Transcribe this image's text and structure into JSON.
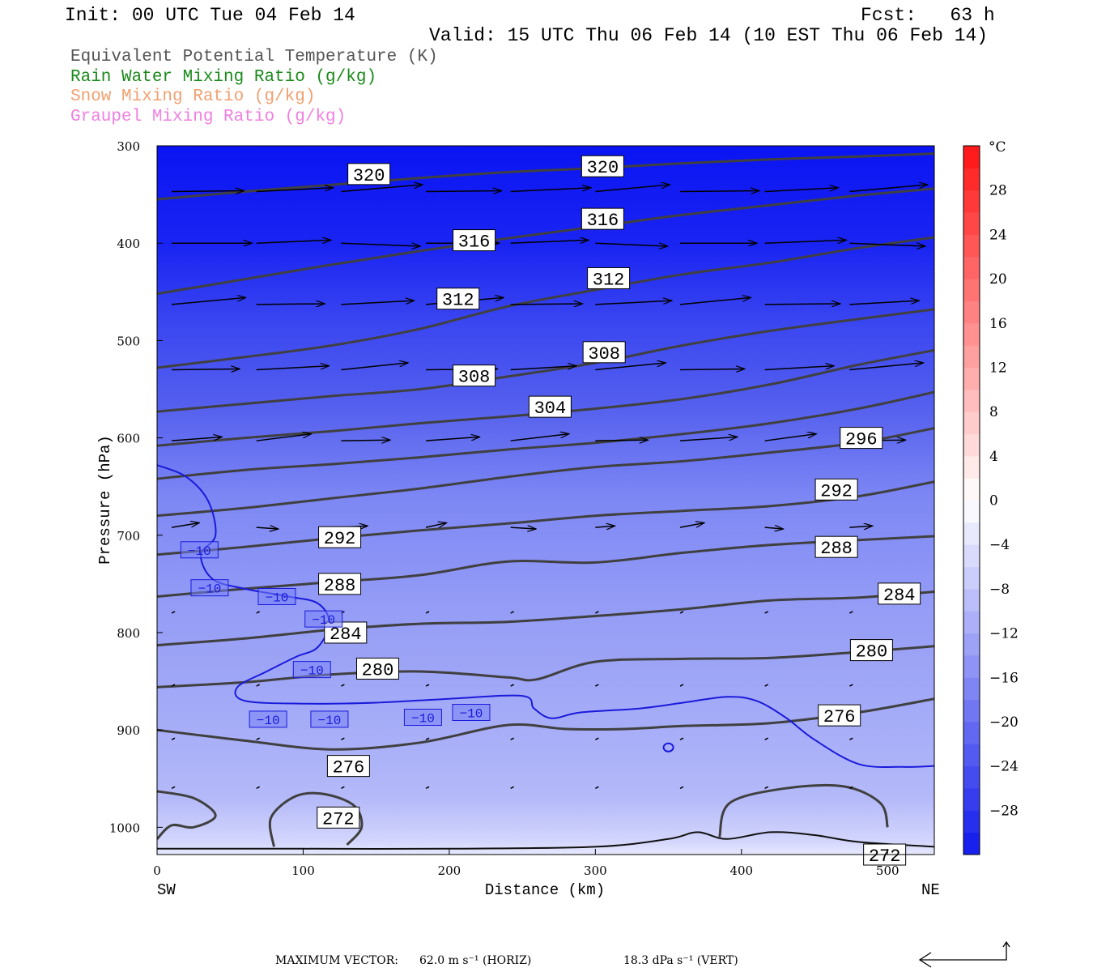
{
  "header": {
    "init": "Init: 00 UTC Tue 04 Feb 14",
    "fcst": "Fcst:   63 h",
    "valid": "Valid: 15 UTC Thu 06 Feb 14 (10 EST Thu 06 Feb 14)"
  },
  "legend": [
    {
      "label": "Equivalent Potential Temperature (K)",
      "color": "#555555"
    },
    {
      "label": "Rain Water Mixing Ratio (g/kg)",
      "color": "#1a8a1a"
    },
    {
      "label": "Snow Mixing Ratio (g/kg)",
      "color": "#f0a070"
    },
    {
      "label": "Graupel Mixing Ratio (g/kg)",
      "color": "#f080e0"
    }
  ],
  "footer": {
    "max_vector_label": "MAXIMUM VECTOR:",
    "horiz": "62.0 m s⁻¹ (HORIZ)",
    "vert": "18.3 dPa s⁻¹ (VERT)"
  },
  "chart_data": {
    "type": "cross-section",
    "xlabel": "Distance (km)",
    "ylabel": "Pressure (hPa)",
    "x_left_label": "SW",
    "x_right_label": "NE",
    "xlim": [
      0,
      532
    ],
    "ylim": [
      1028,
      300
    ],
    "xticks": [
      0,
      100,
      200,
      300,
      400,
      500
    ],
    "yticks": [
      300,
      400,
      500,
      600,
      700,
      800,
      900,
      1000
    ],
    "colorbar": {
      "unit": "°C",
      "ticks": [
        28,
        24,
        20,
        16,
        12,
        8,
        4,
        0,
        -4,
        -8,
        -12,
        -16,
        -20,
        -24,
        -28
      ],
      "range": [
        -32,
        32
      ]
    },
    "theta_e_contours": [
      {
        "level": 320,
        "points": [
          [
            0,
            355
          ],
          [
            60,
            347
          ],
          [
            120,
            340
          ],
          [
            180,
            333
          ],
          [
            240,
            327
          ],
          [
            300,
            323
          ],
          [
            360,
            318
          ],
          [
            420,
            314
          ],
          [
            480,
            311
          ],
          [
            532,
            308
          ]
        ]
      },
      {
        "level": 316,
        "points": [
          [
            0,
            452
          ],
          [
            60,
            437
          ],
          [
            120,
            422
          ],
          [
            180,
            408
          ],
          [
            240,
            395
          ],
          [
            300,
            383
          ],
          [
            360,
            371
          ],
          [
            420,
            361
          ],
          [
            480,
            351
          ],
          [
            532,
            344
          ]
        ]
      },
      {
        "level": 312,
        "points": [
          [
            0,
            528
          ],
          [
            60,
            517
          ],
          [
            120,
            505
          ],
          [
            180,
            488
          ],
          [
            240,
            465
          ],
          [
            300,
            448
          ],
          [
            360,
            432
          ],
          [
            420,
            420
          ],
          [
            480,
            405
          ],
          [
            532,
            394
          ]
        ]
      },
      {
        "level": 308,
        "points": [
          [
            0,
            573
          ],
          [
            60,
            565
          ],
          [
            120,
            557
          ],
          [
            180,
            550
          ],
          [
            240,
            537
          ],
          [
            300,
            523
          ],
          [
            360,
            505
          ],
          [
            420,
            490
          ],
          [
            480,
            478
          ],
          [
            532,
            468
          ]
        ]
      },
      {
        "level": 304,
        "points": [
          [
            0,
            608
          ],
          [
            60,
            600
          ],
          [
            120,
            593
          ],
          [
            180,
            585
          ],
          [
            240,
            578
          ],
          [
            300,
            570
          ],
          [
            360,
            560
          ],
          [
            420,
            545
          ],
          [
            480,
            525
          ],
          [
            532,
            510
          ]
        ]
      },
      {
        "level": 300,
        "points": [
          [
            0,
            642
          ],
          [
            60,
            633
          ],
          [
            120,
            627
          ],
          [
            180,
            620
          ],
          [
            240,
            612
          ],
          [
            300,
            605
          ],
          [
            360,
            596
          ],
          [
            420,
            585
          ],
          [
            480,
            570
          ],
          [
            532,
            553
          ]
        ]
      },
      {
        "level": 296,
        "points": [
          [
            0,
            680
          ],
          [
            60,
            672
          ],
          [
            120,
            662
          ],
          [
            180,
            652
          ],
          [
            240,
            640
          ],
          [
            300,
            630
          ],
          [
            360,
            624
          ],
          [
            420,
            615
          ],
          [
            480,
            605
          ],
          [
            532,
            590
          ]
        ]
      },
      {
        "level": 292,
        "points": [
          [
            0,
            720
          ],
          [
            60,
            712
          ],
          [
            120,
            703
          ],
          [
            180,
            695
          ],
          [
            240,
            688
          ],
          [
            300,
            680
          ],
          [
            360,
            675
          ],
          [
            420,
            670
          ],
          [
            480,
            660
          ],
          [
            532,
            645
          ]
        ]
      },
      {
        "level": 288,
        "points": [
          [
            0,
            763
          ],
          [
            60,
            755
          ],
          [
            120,
            748
          ],
          [
            180,
            741
          ],
          [
            240,
            727
          ],
          [
            300,
            728
          ],
          [
            360,
            718
          ],
          [
            420,
            710
          ],
          [
            480,
            705
          ],
          [
            532,
            701
          ]
        ]
      },
      {
        "level": 284,
        "points": [
          [
            0,
            813
          ],
          [
            60,
            806
          ],
          [
            120,
            797
          ],
          [
            180,
            791
          ],
          [
            240,
            789
          ],
          [
            300,
            783
          ],
          [
            360,
            776
          ],
          [
            420,
            767
          ],
          [
            480,
            764
          ],
          [
            532,
            758
          ]
        ]
      },
      {
        "level": 280,
        "points": [
          [
            0,
            856
          ],
          [
            60,
            851
          ],
          [
            120,
            843
          ],
          [
            180,
            840
          ],
          [
            240,
            846
          ],
          [
            260,
            848
          ],
          [
            300,
            830
          ],
          [
            360,
            827
          ],
          [
            420,
            826
          ],
          [
            480,
            820
          ],
          [
            532,
            814
          ]
        ]
      },
      {
        "level": 276,
        "points": [
          [
            0,
            900
          ],
          [
            60,
            911
          ],
          [
            120,
            920
          ],
          [
            180,
            913
          ],
          [
            240,
            895
          ],
          [
            280,
            899
          ],
          [
            320,
            899
          ],
          [
            360,
            896
          ],
          [
            420,
            893
          ],
          [
            480,
            882
          ],
          [
            532,
            868
          ]
        ]
      }
    ],
    "temp_contours": [
      {
        "level": -10,
        "label_count": 9
      }
    ],
    "theta_e_labels": [
      {
        "value": "320",
        "x": 145,
        "p": 329
      },
      {
        "value": "320",
        "x": 305,
        "p": 321
      },
      {
        "value": "316",
        "x": 305,
        "p": 375
      },
      {
        "value": "316",
        "x": 217,
        "p": 397
      },
      {
        "value": "312",
        "x": 309,
        "p": 436
      },
      {
        "value": "312",
        "x": 206,
        "p": 457
      },
      {
        "value": "308",
        "x": 306,
        "p": 512
      },
      {
        "value": "308",
        "x": 217,
        "p": 536
      },
      {
        "value": "304",
        "x": 269,
        "p": 568
      },
      {
        "value": "296",
        "x": 482,
        "p": 600
      },
      {
        "value": "292",
        "x": 465,
        "p": 653
      },
      {
        "value": "292",
        "x": 125,
        "p": 702
      },
      {
        "value": "288",
        "x": 465,
        "p": 712
      },
      {
        "value": "288",
        "x": 125,
        "p": 750
      },
      {
        "value": "284",
        "x": 508,
        "p": 760
      },
      {
        "value": "284",
        "x": 129,
        "p": 800
      },
      {
        "value": "280",
        "x": 489,
        "p": 818
      },
      {
        "value": "280",
        "x": 151,
        "p": 837
      },
      {
        "value": "276",
        "x": 467,
        "p": 885
      },
      {
        "value": "276",
        "x": 131,
        "p": 937
      },
      {
        "value": "272",
        "x": 124,
        "p": 990
      },
      {
        "value": "272",
        "x": 498,
        "p": 1028
      }
    ],
    "temp_labels": [
      {
        "value": "−10",
        "x": 29,
        "p": 715
      },
      {
        "value": "−10",
        "x": 36,
        "p": 754
      },
      {
        "value": "−10",
        "x": 82,
        "p": 763
      },
      {
        "value": "−10",
        "x": 114,
        "p": 786
      },
      {
        "value": "−10",
        "x": 106,
        "p": 838
      },
      {
        "value": "−10",
        "x": 76,
        "p": 889
      },
      {
        "value": "−10",
        "x": 118,
        "p": 889
      },
      {
        "value": "−10",
        "x": 182,
        "p": 887
      },
      {
        "value": "−10",
        "x": 215,
        "p": 882
      }
    ],
    "wind_rows": [
      {
        "p": 347,
        "u": 1.0,
        "w": 0.05
      },
      {
        "p": 400,
        "u": 1.0,
        "w": 0.0
      },
      {
        "p": 463,
        "u": 0.95,
        "w": 0.05
      },
      {
        "p": 530,
        "u": 0.9,
        "w": 0.05
      },
      {
        "p": 603,
        "u": 0.7,
        "w": 0.05
      },
      {
        "p": 692,
        "u": 0.3,
        "w": 0.02
      },
      {
        "p": 780,
        "u": 0.05,
        "w": -0.05
      },
      {
        "p": 855,
        "u": 0.02,
        "w": 0.03
      },
      {
        "p": 910,
        "u": 0.02,
        "w": 0.03
      },
      {
        "p": 960,
        "u": 0.02,
        "w": 0.03
      }
    ]
  }
}
